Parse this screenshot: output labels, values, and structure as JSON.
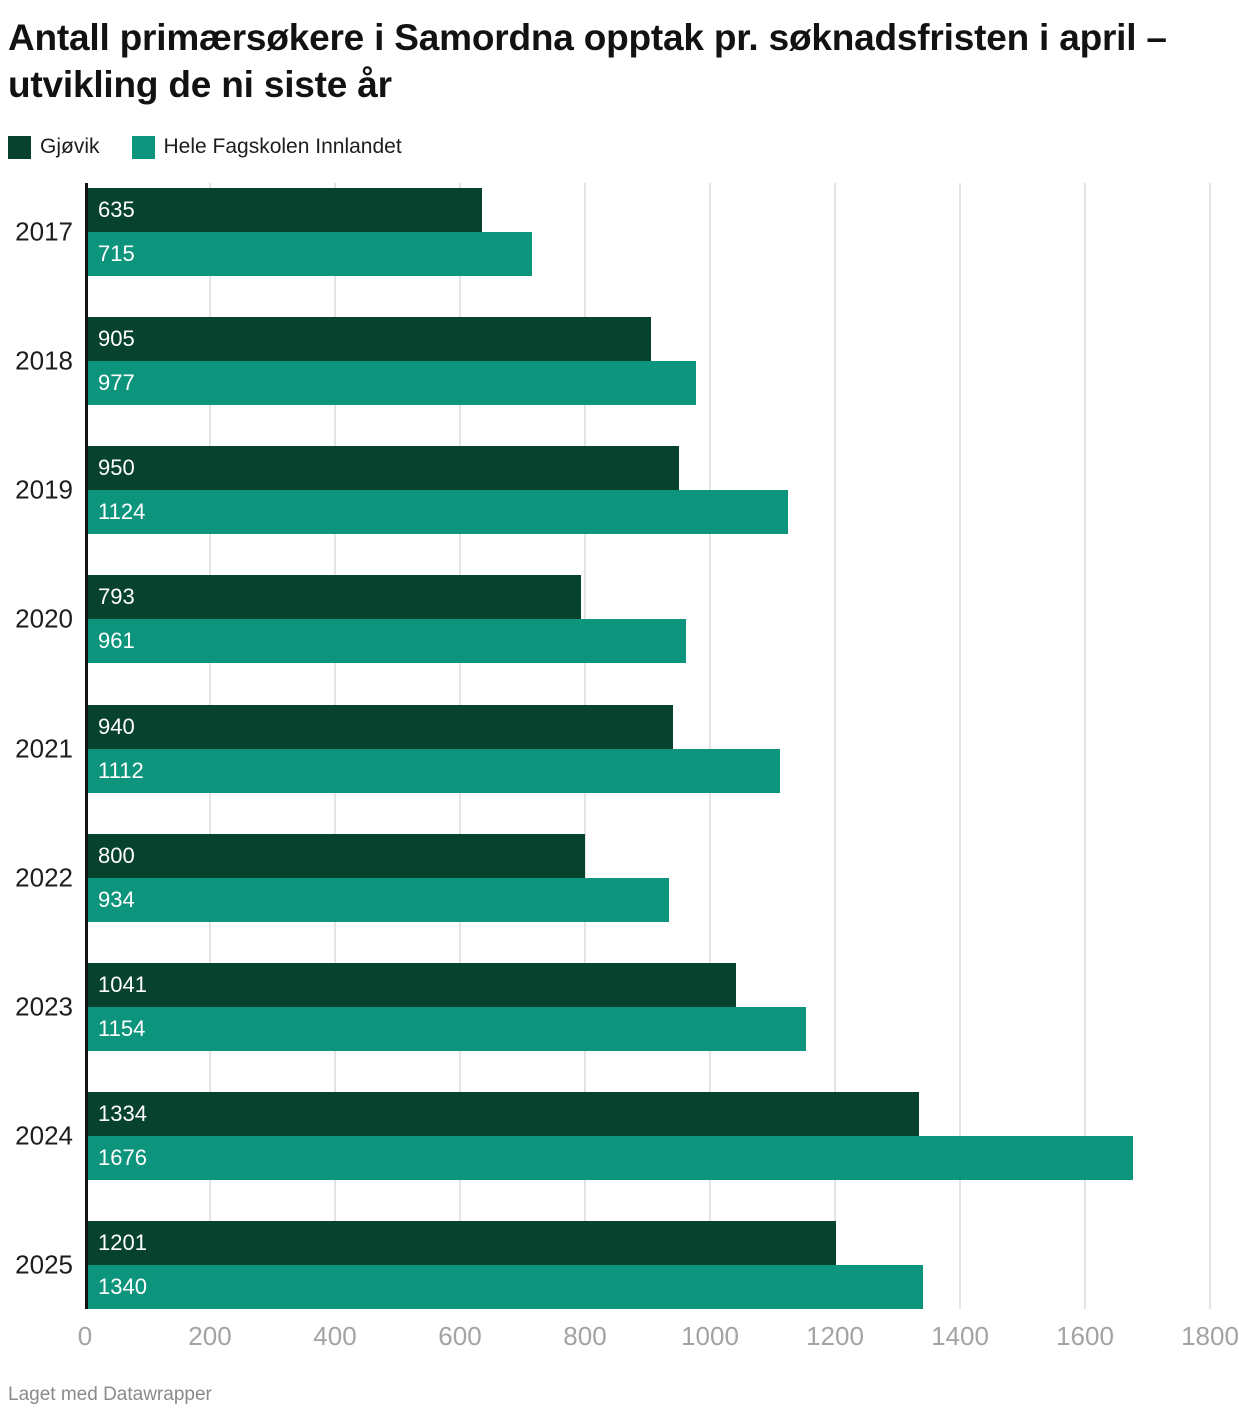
{
  "title": "Antall primærsøkere i Samordna opptak pr. søknadsfristen i april – utvikling de ni siste år",
  "footer": "Laget med Datawrapper",
  "colors": {
    "series1": "#07422f",
    "series2": "#0d947c",
    "gridline": "#e4e4e4",
    "axis_line": "#131313",
    "tick_text": "#a3a3a3",
    "value_text": "#ffffff"
  },
  "legend": {
    "items": [
      {
        "label": "Gjøvik",
        "color": "#07422f"
      },
      {
        "label": "Hele Fagskolen Innlandet",
        "color": "#0d947c"
      }
    ]
  },
  "chart_data": {
    "type": "bar",
    "orientation": "horizontal",
    "title": "Antall primærsøkere i Samordna opptak pr. søknadsfristen i april – utvikling de ni siste år",
    "categories": [
      "2017",
      "2018",
      "2019",
      "2020",
      "2021",
      "2022",
      "2023",
      "2024",
      "2025"
    ],
    "series": [
      {
        "name": "Gjøvik",
        "color": "#07422f",
        "values": [
          635,
          905,
          950,
          793,
          940,
          800,
          1041,
          1334,
          1201
        ]
      },
      {
        "name": "Hele Fagskolen Innlandet",
        "color": "#0d947c",
        "values": [
          715,
          977,
          1124,
          961,
          1112,
          934,
          1154,
          1676,
          1340
        ]
      }
    ],
    "xlabel": "",
    "ylabel": "",
    "xlim": [
      0,
      1800
    ],
    "x_ticks": [
      0,
      200,
      400,
      600,
      800,
      1000,
      1200,
      1400,
      1600,
      1800
    ],
    "grid": true,
    "value_labels": "inside-start",
    "legend_position": "top"
  }
}
